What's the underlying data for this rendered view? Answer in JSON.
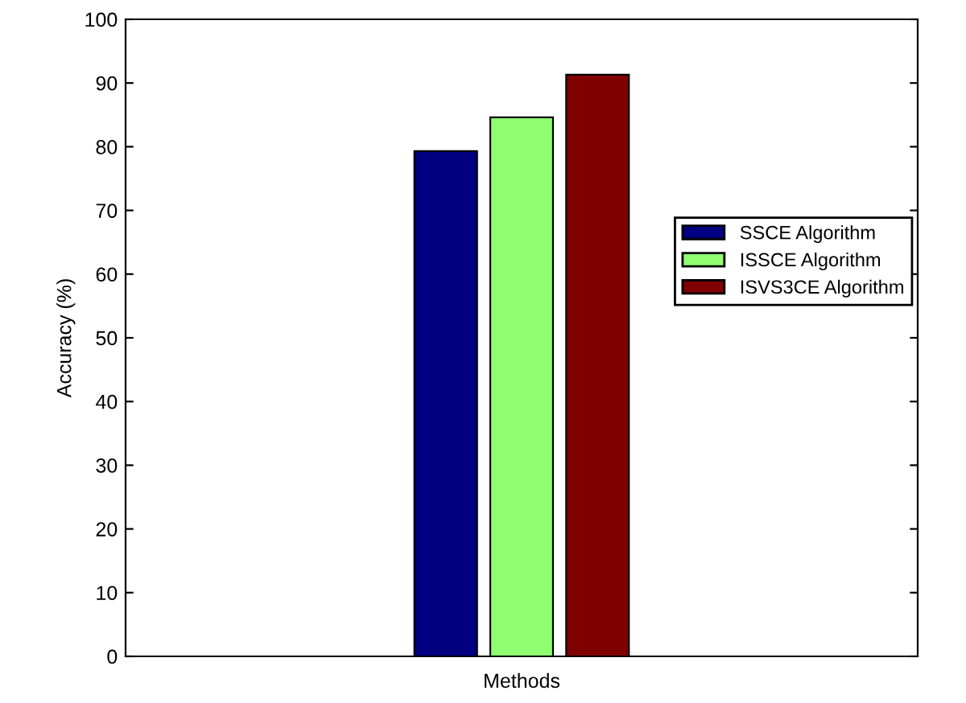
{
  "chart_data": {
    "type": "bar",
    "xlabel": "Methods",
    "ylabel": "Accuracy (%)",
    "categories": [
      null
    ],
    "series": [
      {
        "name": "SSCE Algorithm",
        "color": "#000080",
        "values": [
          79.3
        ]
      },
      {
        "name": "ISSCE Algorithm",
        "color": "#8fff6f",
        "values": [
          84.6
        ]
      },
      {
        "name": "ISVS3CE Algorithm",
        "color": "#800000",
        "values": [
          91.3
        ]
      }
    ],
    "ylim": [
      0,
      100
    ],
    "yticks": [
      0,
      10,
      20,
      30,
      40,
      50,
      60,
      70,
      80,
      90,
      100
    ],
    "legend": "right",
    "grid": false
  }
}
